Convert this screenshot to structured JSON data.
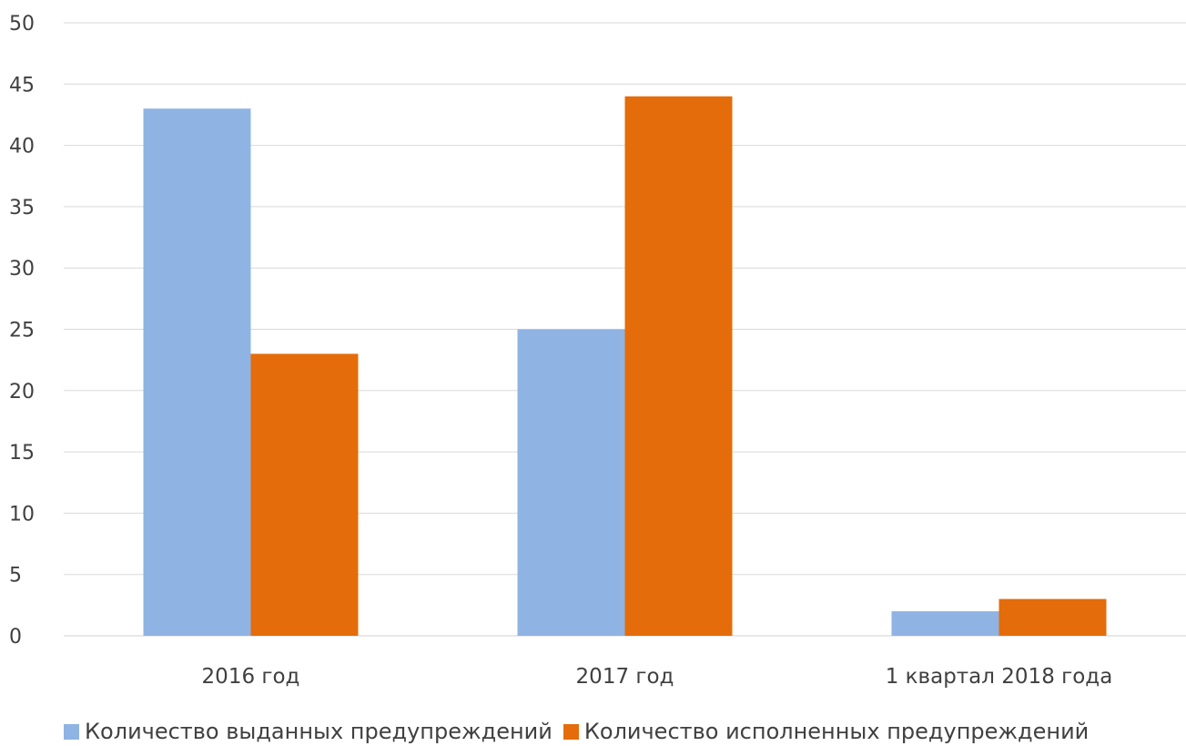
{
  "chart_data": {
    "type": "bar",
    "title": "",
    "xlabel": "",
    "ylabel": "",
    "categories": [
      "2016 год",
      "2017 год",
      "1 квартал 2018 года"
    ],
    "series": [
      {
        "name": "Количество выданных предупреждений",
        "values": [
          43,
          25,
          2
        ],
        "color": "#8FB4E3"
      },
      {
        "name": "Количество исполненных предупреждений",
        "values": [
          23,
          44,
          3
        ],
        "color": "#E46C0A"
      }
    ],
    "ylim": [
      0,
      50
    ],
    "yticks": [
      0,
      5,
      10,
      15,
      20,
      25,
      30,
      35,
      40,
      45,
      50
    ],
    "grid": true,
    "legend_position": "bottom"
  }
}
